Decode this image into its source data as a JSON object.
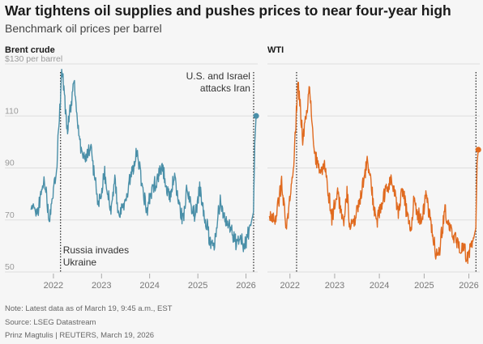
{
  "header": {
    "title": "War tightens oil supplies and pushes prices to near four-year high",
    "subtitle": "Benchmark oil prices per barrel"
  },
  "chart_data": [
    {
      "type": "line",
      "title": "Brent crude",
      "ylabel": "$130 per barrel",
      "ylim": [
        50,
        130
      ],
      "yticks": [
        50,
        70,
        90,
        110
      ],
      "xlim": [
        "2021-07-01",
        "2026-03-31"
      ],
      "xticks": [
        "2022",
        "2023",
        "2024",
        "2025",
        "2026"
      ],
      "color": "#4a8fa8",
      "grid": true,
      "annotations": [
        {
          "x": "2022-02-24",
          "lines": [
            "Russia invades",
            "Ukraine"
          ]
        },
        {
          "x": "2026-02-28",
          "lines": [
            "U.S. and Israel",
            "attacks Iran"
          ]
        }
      ],
      "series": [
        {
          "x": [
            "2021-07-15",
            "2021-09-01",
            "2021-10-25",
            "2021-12-01",
            "2022-01-25",
            "2022-03-08",
            "2022-04-15",
            "2022-06-10",
            "2022-07-20",
            "2022-09-01",
            "2022-10-10",
            "2022-12-09",
            "2023-01-25",
            "2023-03-17",
            "2023-04-12",
            "2023-05-04",
            "2023-06-20",
            "2023-09-27",
            "2023-11-15",
            "2023-12-12",
            "2024-01-25",
            "2024-04-05",
            "2024-06-04",
            "2024-07-05",
            "2024-09-10",
            "2024-10-07",
            "2024-12-10",
            "2025-01-15",
            "2025-03-05",
            "2025-04-09",
            "2025-05-05",
            "2025-06-20",
            "2025-07-25",
            "2025-09-01",
            "2025-10-20",
            "2025-11-20",
            "2025-12-16",
            "2026-01-20",
            "2026-02-10",
            "2026-02-27",
            "2026-03-09",
            "2026-03-19"
          ],
          "y": [
            75,
            73,
            86,
            70,
            90,
            128,
            105,
            123,
            100,
            93,
            98,
            76,
            88,
            73,
            87,
            72,
            75,
            97,
            80,
            74,
            82,
            91,
            77,
            87,
            69,
            81,
            72,
            82,
            69,
            60,
            61,
            78,
            70,
            68,
            61,
            64,
            59,
            65,
            69,
            73,
            100,
            110
          ]
        }
      ]
    },
    {
      "type": "line",
      "title": "WTI",
      "ylim": [
        50,
        130
      ],
      "xlim": [
        "2021-07-01",
        "2026-03-31"
      ],
      "xticks": [
        "2022",
        "2023",
        "2024",
        "2025",
        "2026"
      ],
      "color": "#e06a1f",
      "grid": true,
      "series": [
        {
          "x": [
            "2021-07-15",
            "2021-09-01",
            "2021-10-25",
            "2021-12-01",
            "2022-01-25",
            "2022-03-08",
            "2022-04-15",
            "2022-06-10",
            "2022-07-20",
            "2022-09-01",
            "2022-10-10",
            "2022-12-09",
            "2023-01-25",
            "2023-03-17",
            "2023-04-12",
            "2023-05-04",
            "2023-06-20",
            "2023-09-27",
            "2023-11-15",
            "2023-12-12",
            "2024-01-25",
            "2024-04-05",
            "2024-06-04",
            "2024-07-05",
            "2024-09-10",
            "2024-10-07",
            "2024-12-10",
            "2025-01-15",
            "2025-03-05",
            "2025-04-09",
            "2025-05-05",
            "2025-06-20",
            "2025-07-25",
            "2025-09-01",
            "2025-10-20",
            "2025-11-20",
            "2025-12-16",
            "2026-01-20",
            "2026-02-10",
            "2026-02-27",
            "2026-03-09",
            "2026-03-19"
          ],
          "y": [
            72,
            70,
            84,
            66,
            87,
            123,
            102,
            120,
            96,
            87,
            92,
            71,
            81,
            67,
            82,
            68,
            70,
            93,
            76,
            69,
            77,
            86,
            73,
            83,
            65,
            77,
            69,
            79,
            66,
            57,
            58,
            74,
            67,
            64,
            58,
            60,
            55,
            60,
            63,
            67,
            92,
            97
          ]
        }
      ]
    }
  ],
  "footer": {
    "note": "Note: Latest data as of March 19, 9:45 a.m., EST",
    "source": "Source: LSEG Datastream",
    "credit": "Prinz Magtulis | REUTERS, March 19, 2026"
  }
}
